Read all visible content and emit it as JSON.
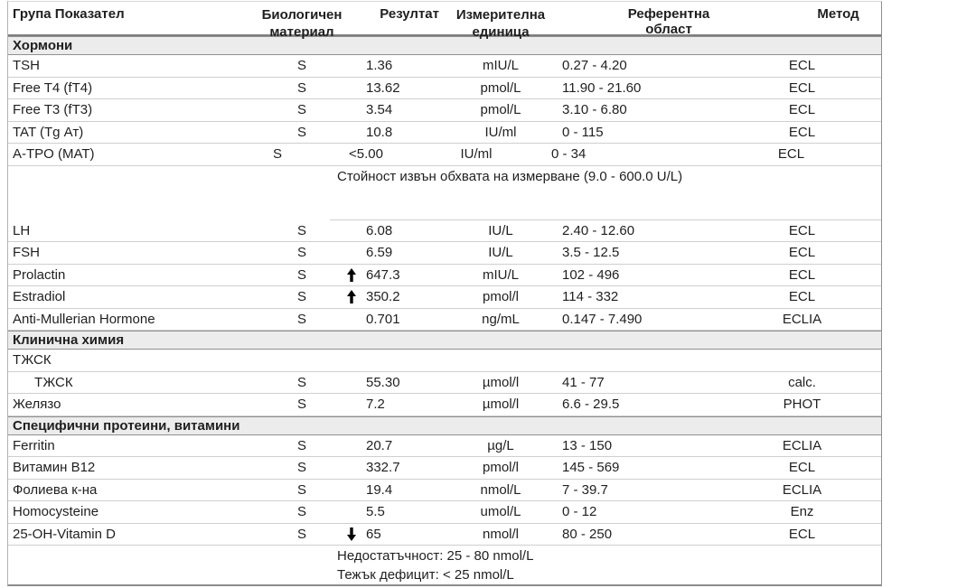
{
  "header": {
    "col_test": "Група Показател",
    "col_material": "Биологичен материал",
    "col_result": "Резултат",
    "col_unit": "Измерителна единица",
    "col_range": "Референтна област",
    "col_method": "Метод"
  },
  "icons": {
    "up_arrow": "↑",
    "down_arrow": "↓"
  },
  "colors": {
    "section_bar_bg": "#ececec",
    "row_border": "#cfcfcf",
    "section_border": "#8f8f8f",
    "text": "#1f1f1f",
    "arrow": "#000000"
  },
  "sections": [
    {
      "title": "Хормони",
      "rows": [
        {
          "name": "TSH",
          "material": "S",
          "result": "1.36",
          "unit": "mIU/L",
          "range": "0.27 - 4.20",
          "method": "ECL"
        },
        {
          "name": "Free T4 (fT4)",
          "material": "S",
          "result": "13.62",
          "unit": "pmol/L",
          "range": "11.90 - 21.60",
          "method": "ECL"
        },
        {
          "name": "Free T3 (fT3)",
          "material": "S",
          "result": "3.54",
          "unit": "pmol/L",
          "range": "3.10 - 6.80",
          "method": "ECL"
        },
        {
          "name": "TAT (Tg Ат)",
          "material": "S",
          "result": "10.8",
          "unit": "IU/ml",
          "range": "0 - 115",
          "method": "ECL"
        },
        {
          "name": "A-TPO (MAT)",
          "material": "S",
          "result": "<5.00",
          "unit": "IU/ml",
          "range": "0 - 34",
          "method": "ECL",
          "variant": "sub"
        },
        {
          "type": "note",
          "note": "Стойност извън обхвата на измерване (9.0 - 600.0 U/L)"
        },
        {
          "name": "LH",
          "material": "S",
          "result": "6.08",
          "unit": "IU/L",
          "range": "2.40 - 12.60",
          "method": "ECL"
        },
        {
          "name": "FSH",
          "material": "S",
          "result": "6.59",
          "unit": "IU/L",
          "range": "3.5 - 12.5",
          "method": "ECL"
        },
        {
          "name": "Prolactin",
          "material": "S",
          "result": "647.3",
          "arrow": "up",
          "unit": "mIU/L",
          "range": "102 - 496",
          "method": "ECL"
        },
        {
          "name": "Estradiol",
          "material": "S",
          "result": "350.2",
          "arrow": "up",
          "unit": "pmol/l",
          "range": "114 - 332",
          "method": "ECL"
        },
        {
          "name": "Anti-Mullerian Hormone",
          "material": "S",
          "result": "0.701",
          "unit": "ng/mL",
          "range": "0.147 - 7.490",
          "method": "ECLIA"
        }
      ]
    },
    {
      "title": "Клинична химия",
      "rows": [
        {
          "type": "group",
          "name": "ТЖСК"
        },
        {
          "name": "ТЖСК",
          "indent": true,
          "material": "S",
          "result": "55.30",
          "unit": "µmol/l",
          "range": "41 - 77",
          "method": "calc."
        },
        {
          "name": "Желязо",
          "material": "S",
          "result": "7.2",
          "unit": "µmol/l",
          "range": "6.6 - 29.5",
          "method": "PHOT"
        }
      ]
    },
    {
      "title": "Специфични протеини, витамини",
      "rows": [
        {
          "name": "Ferritin",
          "material": "S",
          "result": "20.7",
          "unit": "µg/L",
          "range": "13 - 150",
          "method": "ECLIA"
        },
        {
          "name": "Витамин B12",
          "material": "S",
          "result": "332.7",
          "unit": "pmol/l",
          "range": "145 - 569",
          "method": "ECL"
        },
        {
          "name": "Фолиева к-на",
          "material": "S",
          "result": "19.4",
          "unit": "nmol/L",
          "range": "7 - 39.7",
          "method": "ECLIA"
        },
        {
          "name": "Homocysteine",
          "material": "S",
          "result": "5.5",
          "unit": "umol/L",
          "range": "0 - 12",
          "method": "Enz"
        },
        {
          "name": "25-OH-Vitamin D",
          "material": "S",
          "result": "65",
          "arrow": "down",
          "unit": "nmol/l",
          "range": "80 - 250",
          "method": "ECL"
        },
        {
          "type": "footnote",
          "lines": [
            "Недостатъчност: 25 - 80 nmol/L",
            "Тежък дефицит: < 25 nmol/L"
          ]
        }
      ]
    }
  ]
}
